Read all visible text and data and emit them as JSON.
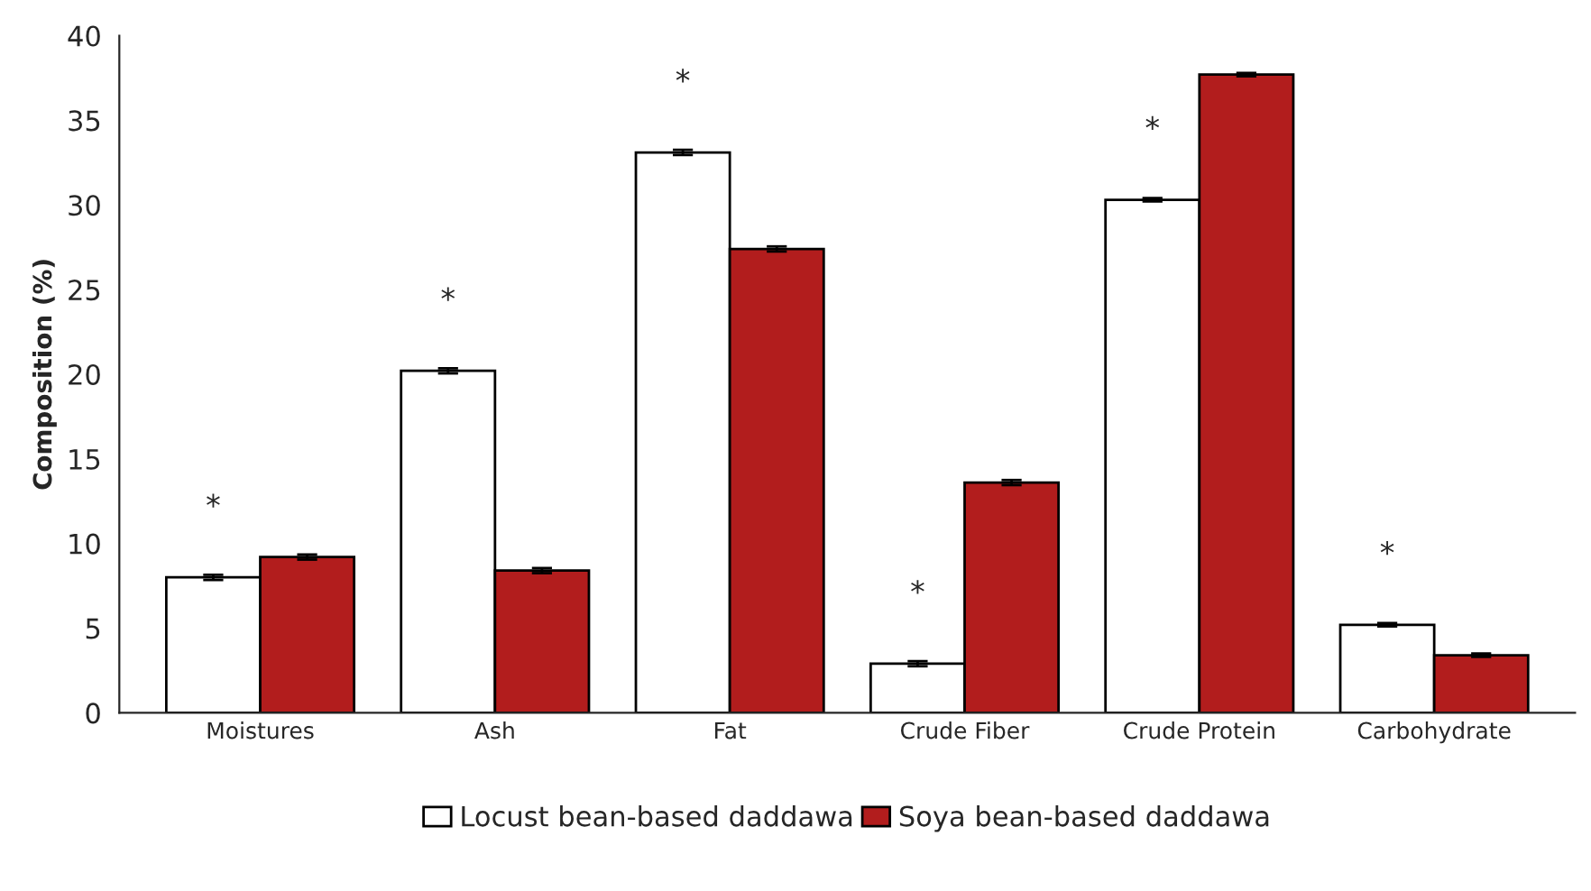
{
  "chart_data": {
    "type": "bar",
    "ylabel": "Composition (%)",
    "categories": [
      "Moistures",
      "Ash",
      "Fat",
      "Crude Fiber",
      "Crude Protein",
      "Carbohydrate"
    ],
    "series": [
      {
        "name": "Locust bean-based daddawa",
        "color": "#ffffff",
        "values": [
          8.0,
          20.2,
          33.1,
          2.9,
          30.3,
          5.2
        ],
        "errors": [
          0.15,
          0.15,
          0.15,
          0.15,
          0.1,
          0.1
        ]
      },
      {
        "name": "Soya bean-based daddawa",
        "color": "#b21d1d",
        "values": [
          9.2,
          8.4,
          27.4,
          13.6,
          37.7,
          3.4
        ],
        "errors": [
          0.15,
          0.15,
          0.15,
          0.15,
          0.1,
          0.1
        ]
      }
    ],
    "annotations": [
      "*",
      "*",
      "*",
      "*",
      "*",
      "*"
    ],
    "ylim": [
      0,
      40
    ],
    "yticks": [
      0,
      5,
      10,
      15,
      20,
      25,
      30,
      35,
      40
    ],
    "grid": false,
    "legend": "bottom"
  }
}
